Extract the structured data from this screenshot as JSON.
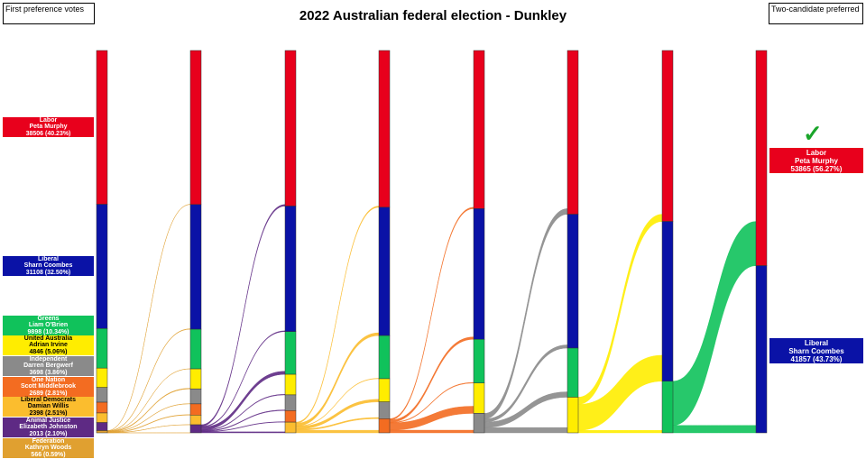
{
  "title": "2022 Australian federal election - Dunkley",
  "left_header": "First preference votes",
  "right_header": "Two-candidate preferred",
  "winner_icon": "check-mark",
  "candidates": [
    {
      "party": "Labor",
      "name": "Peta Murphy",
      "first": "38506 (40.23%)",
      "color": "#e8001c",
      "text": "#fff"
    },
    {
      "party": "Liberal",
      "name": "Sharn Coombes",
      "first": "31108 (32.50%)",
      "color": "#0a12a6",
      "text": "#fff"
    },
    {
      "party": "Greens",
      "name": "Liam O'Brien",
      "first": "9898 (10.34%)",
      "color": "#10c25b",
      "text": "#fff"
    },
    {
      "party": "United Australia",
      "name": "Adrian Irvine",
      "first": "4846 (5.06%)",
      "color": "#ffed00",
      "text": "#000"
    },
    {
      "party": "Independent",
      "name": "Darren Bergwerf",
      "first": "3698 (3.86%)",
      "color": "#8a8a8a",
      "text": "#fff"
    },
    {
      "party": "One Nation",
      "name": "Scott Middlebrook",
      "first": "2689 (2.81%)",
      "color": "#f36c21",
      "text": "#fff"
    },
    {
      "party": "Liberal Democrats",
      "name": "Damian Willis",
      "first": "2398 (2.51%)",
      "color": "#fbbd2e",
      "text": "#000"
    },
    {
      "party": "Animal Justice",
      "name": "Elizabeth Johnston",
      "first": "2013 (2.10%)",
      "color": "#5e2a84",
      "text": "#fff"
    },
    {
      "party": "Federation",
      "name": "Kathryn Woods",
      "first": "566 (0.59%)",
      "color": "#e0a030",
      "text": "#fff"
    }
  ],
  "final": [
    {
      "party": "Labor",
      "name": "Peta Murphy",
      "tcp": "53865 (56.27%)"
    },
    {
      "party": "Liberal",
      "name": "Sharn Coombes",
      "tcp": "41857 (43.73%)"
    }
  ],
  "rounds": [
    [
      38506,
      31108,
      9898,
      4846,
      3698,
      2689,
      2398,
      2013,
      566
    ],
    [
      38560,
      31220,
      9930,
      5000,
      3760,
      2800,
      2430,
      2022
    ],
    [
      38950,
      31420,
      10700,
      5150,
      3920,
      2900,
      2682
    ],
    [
      39250,
      32120,
      10800,
      5800,
      4200,
      3552
    ],
    [
      39600,
      32700,
      10950,
      7600,
      4872
    ],
    [
      41000,
      33500,
      12300,
      8922
    ],
    [
      42800,
      40000,
      12922
    ],
    [
      53865,
      41857
    ]
  ]
}
